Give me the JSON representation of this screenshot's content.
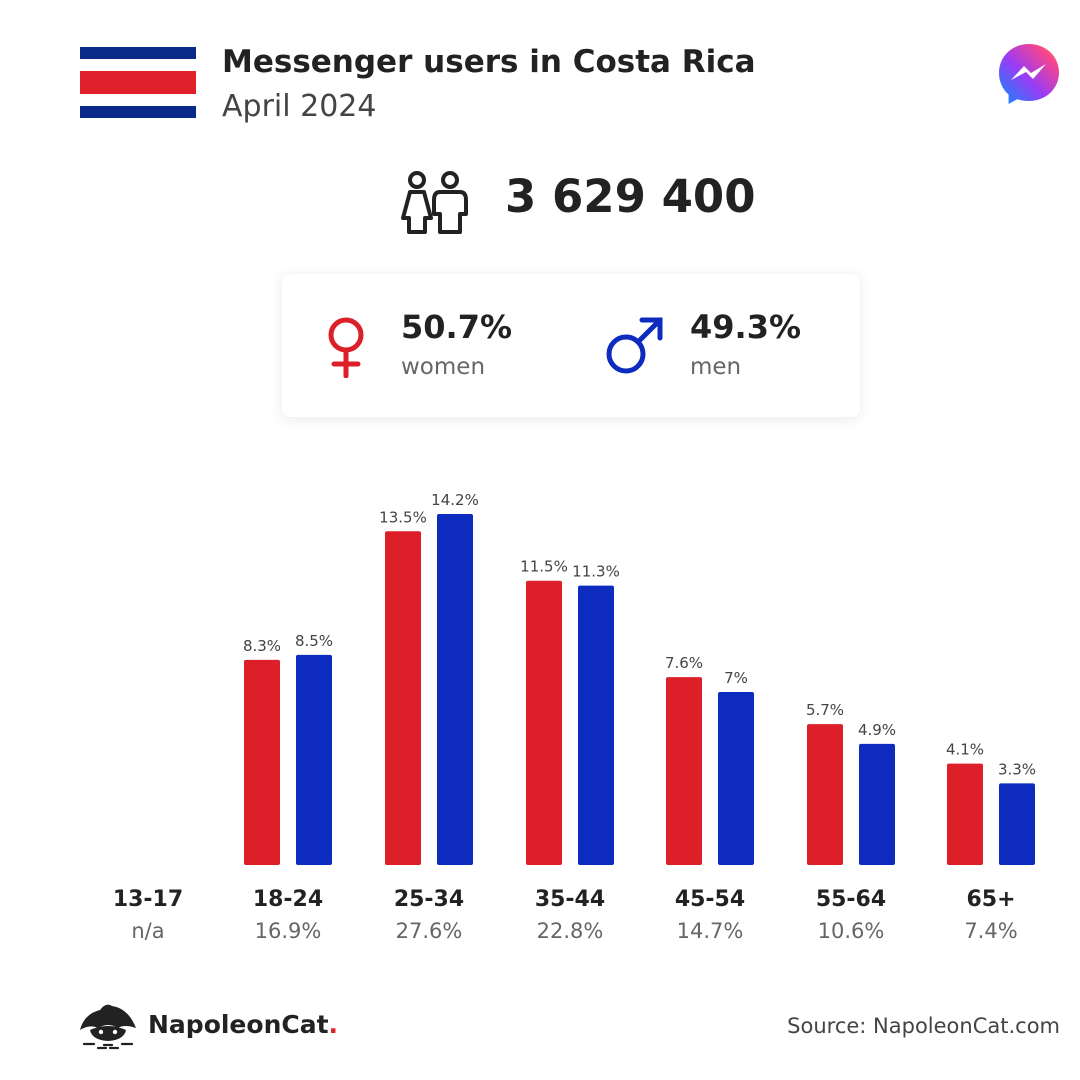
{
  "header": {
    "title": "Messenger users in Costa Rica",
    "subtitle": "April 2024"
  },
  "flag": {
    "stripes": [
      "#0a2a8a",
      "#ffffff",
      "#e0202a",
      "#ffffff",
      "#0a2a8a"
    ]
  },
  "summary": {
    "total_users": "3 629 400",
    "icon": "people-icon"
  },
  "gender": {
    "women_pct": "50.7%",
    "women_label": "women",
    "men_pct": "49.3%",
    "men_label": "men"
  },
  "colors": {
    "women": "#dc1f28",
    "men": "#0e2bbf"
  },
  "chart_data": {
    "type": "bar",
    "categories": [
      "13-17",
      "18-24",
      "25-34",
      "35-44",
      "45-54",
      "55-64",
      "65+"
    ],
    "category_totals": [
      "n/a",
      "16.9%",
      "27.6%",
      "22.8%",
      "14.7%",
      "10.6%",
      "7.4%"
    ],
    "series": [
      {
        "name": "women",
        "color": "#dc1f28",
        "values": [
          null,
          8.3,
          13.5,
          11.5,
          7.6,
          5.7,
          4.1
        ],
        "labels": [
          "",
          "8.3%",
          "13.5%",
          "11.5%",
          "7.6%",
          "5.7%",
          "4.1%"
        ]
      },
      {
        "name": "men",
        "color": "#0e2bbf",
        "values": [
          null,
          8.5,
          14.2,
          11.3,
          7,
          4.9,
          3.3
        ],
        "labels": [
          "",
          "8.5%",
          "14.2%",
          "11.3%",
          "7%",
          "4.9%",
          "3.3%"
        ]
      }
    ],
    "ylim": [
      0,
      14.2
    ],
    "grid": false,
    "legend": "none"
  },
  "footer": {
    "brand_name": "NapoleonCat",
    "brand_dot": ".",
    "source": "Source: NapoleonCat.com"
  }
}
